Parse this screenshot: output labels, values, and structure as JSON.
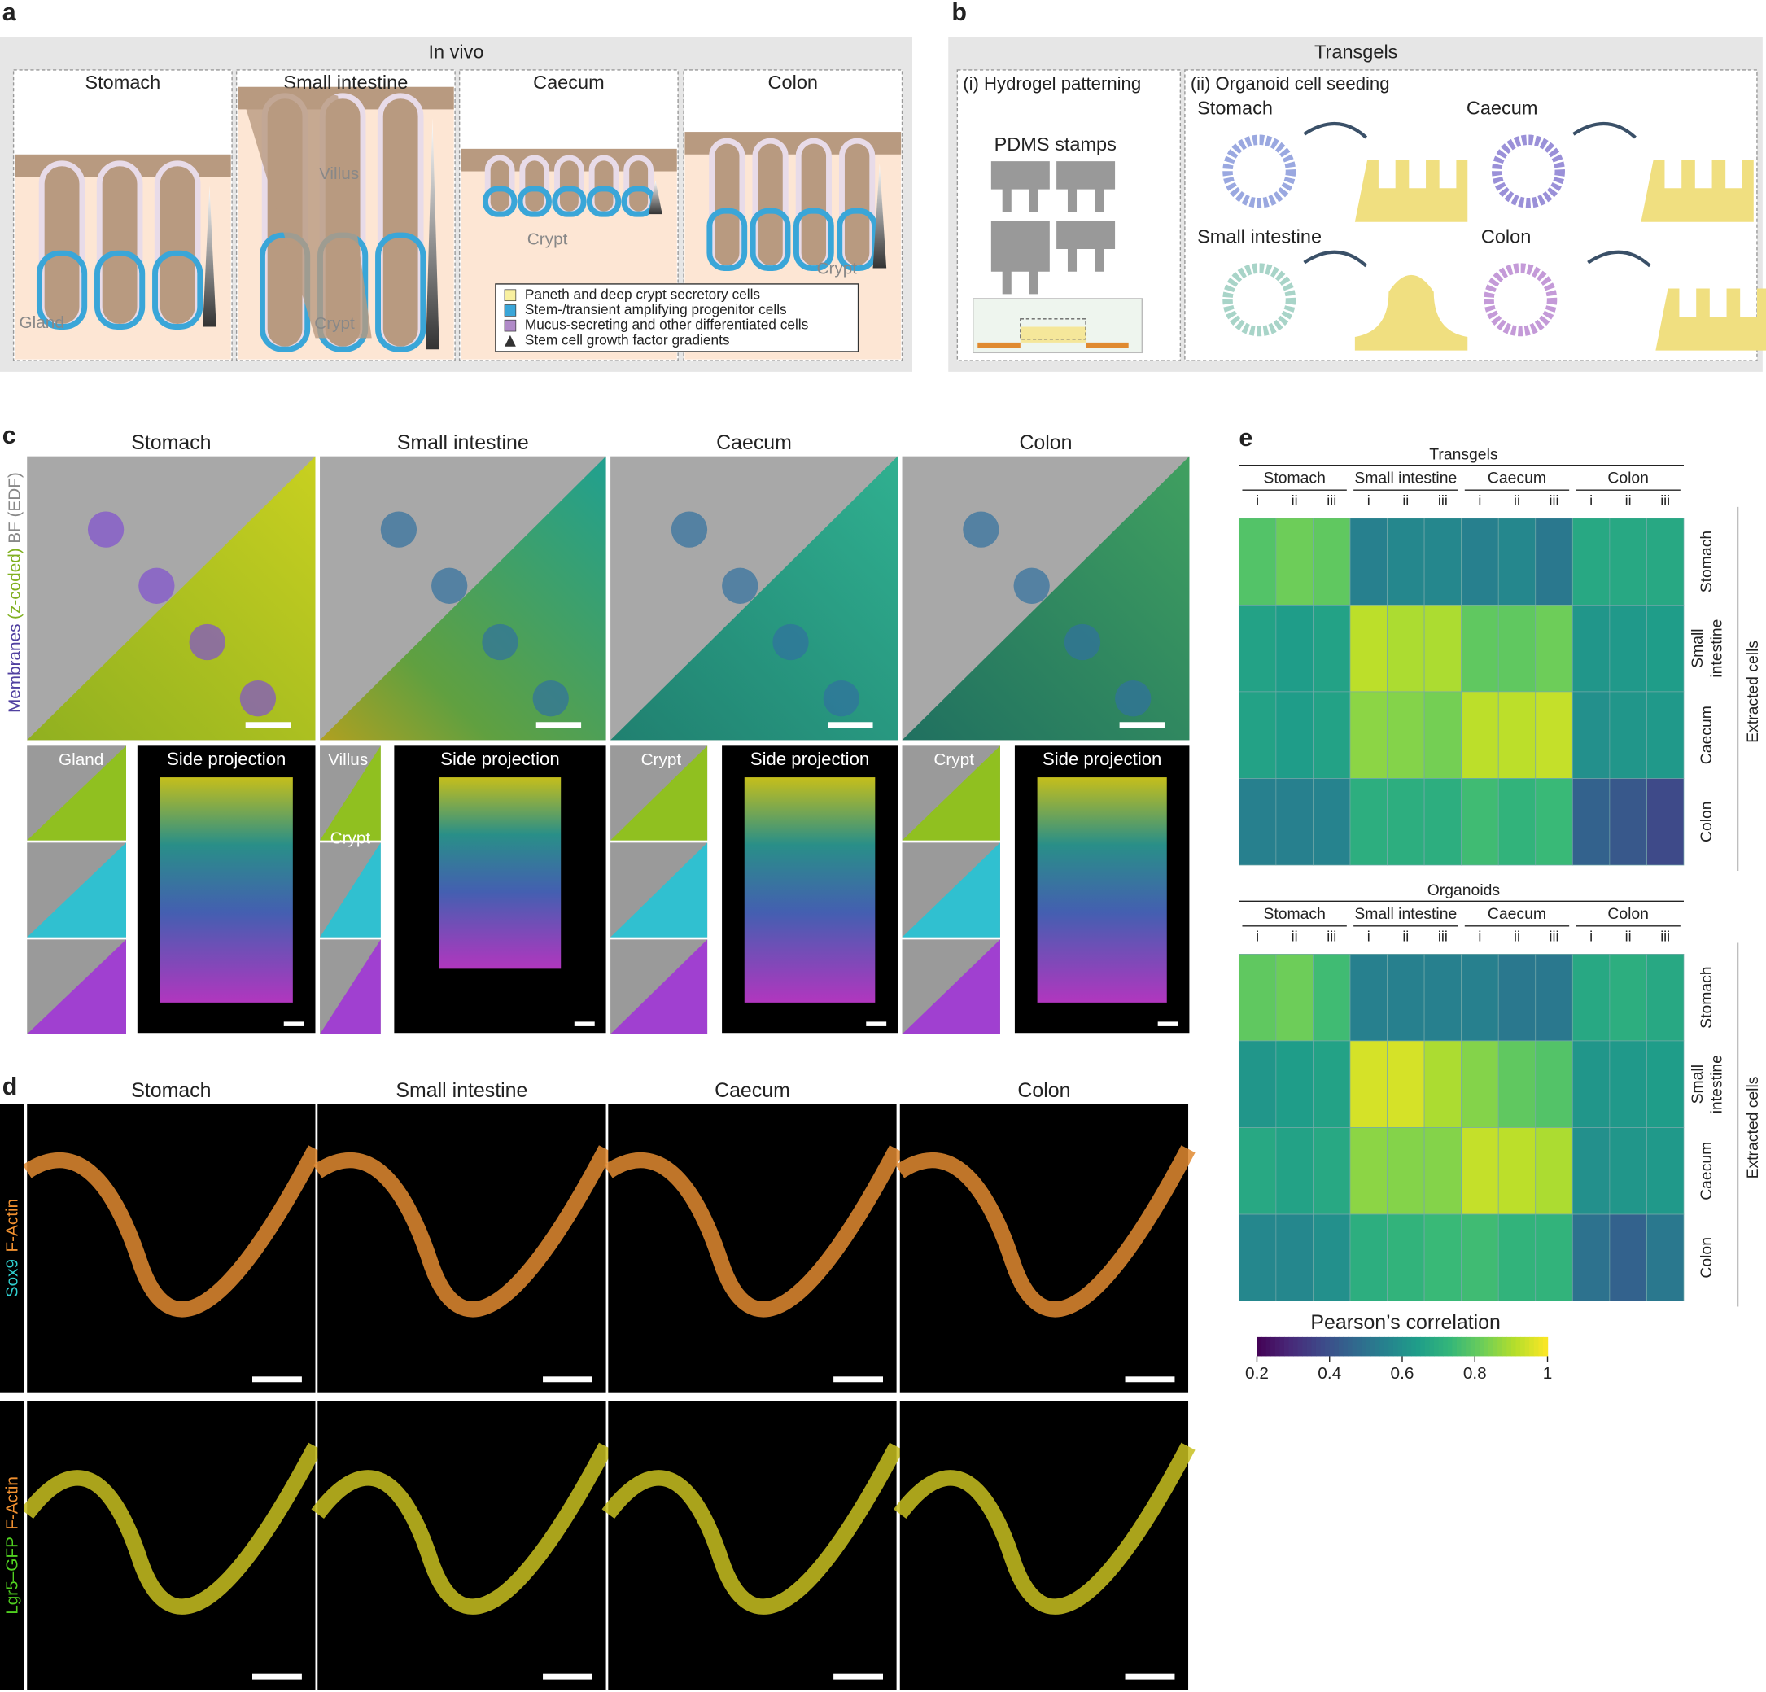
{
  "panels": {
    "a": {
      "label": "a",
      "title": "In vivo",
      "sections": [
        "Stomach",
        "Small intestine",
        "Caecum",
        "Colon"
      ],
      "annotations": [
        "Gland",
        "Villus",
        "Crypt",
        "Crypt",
        "Crypt"
      ],
      "legend": [
        "Paneth and deep crypt secretory cells",
        "Stem-/transient amplifying progenitor cells",
        "Mucus-secreting and other differentiated cells",
        "Stem cell growth factor gradients"
      ]
    },
    "b": {
      "label": "b",
      "title": "Transgels",
      "steps": [
        "(i) Hydrogel patterning",
        "(ii) Organoid cell seeding"
      ],
      "stamps": "PDMS stamps",
      "tissues": [
        "Stomach",
        "Caecum",
        "Small intestine",
        "Colon"
      ]
    },
    "c": {
      "label": "c",
      "columns": [
        "Stomach",
        "Small intestine",
        "Caecum",
        "Colon"
      ],
      "channel_label": [
        "Membranes",
        "(z-coded)",
        "BF (EDF)"
      ],
      "insets": [
        "Gland",
        "Villus",
        "Crypt",
        "Crypt",
        "Crypt"
      ],
      "side": [
        "Side projection",
        "Side projection",
        "Side projection",
        "Side projection"
      ]
    },
    "d": {
      "label": "d",
      "columns": [
        "Stomach",
        "Small intestine",
        "Caecum",
        "Colon"
      ],
      "row_labels": [
        [
          "Sox9",
          "F-Actin"
        ],
        [
          "Lgr5–GFP",
          "F-Actin"
        ]
      ]
    },
    "e": {
      "label": "e",
      "colorbar": {
        "label": "Pearson’s correlation",
        "lim": [
          0.2,
          1
        ],
        "ticks": [
          0.2,
          0.4,
          0.6,
          0.8,
          1
        ],
        "colormap": "viridis"
      }
    }
  },
  "chart_data": [
    {
      "type": "heatmap",
      "title": "Transgels",
      "groups": [
        "Stomach",
        "Small intestine",
        "Caecum",
        "Colon"
      ],
      "categories": [
        "i",
        "ii",
        "iii",
        "i",
        "ii",
        "iii",
        "i",
        "ii",
        "iii",
        "i",
        "ii",
        "iii"
      ],
      "rows": [
        "Stomach",
        [
          "Small",
          "intestine"
        ],
        "Caecum",
        "Colon"
      ],
      "row_axis_label": "Extracted cells",
      "values": [
        [
          0.78,
          0.82,
          0.8,
          0.55,
          0.57,
          0.57,
          0.55,
          0.57,
          0.52,
          0.68,
          0.68,
          0.68
        ],
        [
          0.66,
          0.64,
          0.66,
          0.92,
          0.9,
          0.9,
          0.8,
          0.8,
          0.82,
          0.62,
          0.63,
          0.64
        ],
        [
          0.66,
          0.64,
          0.66,
          0.86,
          0.85,
          0.83,
          0.92,
          0.92,
          0.93,
          0.6,
          0.62,
          0.63
        ],
        [
          0.55,
          0.55,
          0.56,
          0.7,
          0.7,
          0.7,
          0.75,
          0.72,
          0.74,
          0.45,
          0.42,
          0.38
        ]
      ]
    },
    {
      "type": "heatmap",
      "title": "Organoids",
      "groups": [
        "Stomach",
        "Small intestine",
        "Caecum",
        "Colon"
      ],
      "categories": [
        "i",
        "ii",
        "iii",
        "i",
        "ii",
        "iii",
        "i",
        "ii",
        "iii",
        "i",
        "ii",
        "iii"
      ],
      "rows": [
        "Stomach",
        [
          "Small",
          "intestine"
        ],
        "Caecum",
        "Colon"
      ],
      "row_axis_label": "Extracted cells",
      "values": [
        [
          0.8,
          0.82,
          0.75,
          0.55,
          0.55,
          0.55,
          0.55,
          0.52,
          0.52,
          0.68,
          0.7,
          0.68
        ],
        [
          0.62,
          0.64,
          0.66,
          0.95,
          0.95,
          0.9,
          0.85,
          0.8,
          0.78,
          0.62,
          0.63,
          0.64
        ],
        [
          0.68,
          0.66,
          0.68,
          0.86,
          0.85,
          0.85,
          0.93,
          0.92,
          0.9,
          0.6,
          0.62,
          0.63
        ],
        [
          0.57,
          0.57,
          0.6,
          0.7,
          0.72,
          0.74,
          0.75,
          0.72,
          0.72,
          0.5,
          0.45,
          0.52
        ]
      ]
    }
  ]
}
